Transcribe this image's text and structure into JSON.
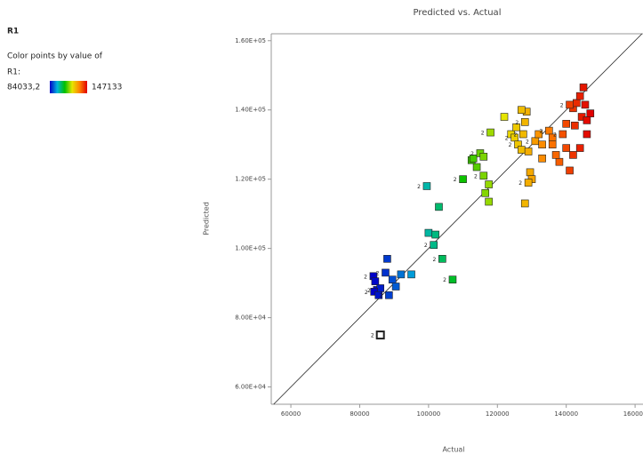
{
  "chart_data": {
    "type": "scatter",
    "title": "Predicted vs. Actual",
    "x_label": "Actual",
    "y_label": "Predicted",
    "colorbar_title": "R1",
    "colorbar_caption": "Color points by value of",
    "colorbar_variable": "R1:",
    "colorbar_range": [
      {
        "value": 84033.2,
        "label": "84033,2"
      },
      147133
    ],
    "colormap": [
      "#0000c8",
      "#00b4dc",
      "#00c000",
      "#e6e600",
      "#ff8000",
      "#e00000"
    ],
    "xlim": [
      54300,
      162300
    ],
    "ylim": [
      55000,
      162000
    ],
    "xticks": [
      60000,
      80000,
      100000,
      120000,
      140000,
      160000
    ],
    "yticks": [
      {
        "value": 60000,
        "label": "6.00E+04"
      },
      {
        "value": 80000,
        "label": "8.00E+04"
      },
      {
        "value": 100000,
        "label": "1.00E+05"
      },
      {
        "value": 120000,
        "label": "1.20E+05"
      },
      {
        "value": 140000,
        "label": "1.40E+05"
      },
      {
        "value": 160000,
        "label": "1.60E+05"
      }
    ],
    "reference_line": true,
    "highlighted_point": 13,
    "x": [
      84000,
      84500,
      85000,
      86000,
      84200,
      85500,
      87500,
      88000,
      89500,
      90500,
      92000,
      95000,
      88500,
      86000,
      100000,
      102000,
      101500,
      104000,
      107000,
      103000,
      99500,
      110000,
      114000,
      116000,
      116500,
      117500,
      117500,
      118000,
      112500,
      113000,
      115000,
      116000,
      122000,
      124000,
      125000,
      125500,
      126000,
      127000,
      127500,
      128000,
      128500,
      129000,
      129500,
      130000,
      129000,
      128000,
      131000,
      132000,
      133000,
      133000,
      127000,
      135000,
      136000,
      138000,
      137000,
      139000,
      140000,
      141000,
      142000,
      140000,
      136000,
      142000,
      143000,
      144000,
      145000,
      144500,
      146000,
      145500,
      147000,
      142500,
      144000,
      146000,
      141000
    ],
    "values": [
      92000,
      90500,
      88000,
      88500,
      87500,
      86500,
      93000,
      97000,
      91000,
      89000,
      92500,
      92500,
      86500,
      75000,
      104500,
      104000,
      101000,
      97000,
      91000,
      112000,
      118000,
      120000,
      123500,
      121000,
      116000,
      113500,
      118500,
      133500,
      125500,
      126000,
      127500,
      126500,
      138000,
      133000,
      132000,
      135000,
      130000,
      128500,
      133000,
      136500,
      139500,
      128000,
      122000,
      120000,
      119000,
      113000,
      131000,
      133000,
      130000,
      126000,
      140000,
      134000,
      132000,
      125000,
      127000,
      133000,
      129000,
      122500,
      127000,
      136000,
      130000,
      140500,
      142000,
      144000,
      146500,
      138000,
      137000,
      141500,
      139000,
      135500,
      129000,
      133000,
      141500
    ],
    "replicate_labels": [
      "2",
      null,
      "2",
      null,
      "2",
      null,
      "2",
      null,
      null,
      null,
      null,
      null,
      "2",
      "2",
      null,
      null,
      "2",
      "2",
      "2",
      null,
      "2",
      "2",
      null,
      "2",
      null,
      null,
      null,
      "2",
      null,
      null,
      "2",
      null,
      null,
      null,
      "2",
      null,
      "2",
      null,
      "2",
      "2",
      null,
      null,
      null,
      null,
      "2",
      null,
      "2",
      null,
      null,
      null,
      null,
      "2",
      null,
      null,
      null,
      "2",
      null,
      null,
      null,
      null,
      null,
      null,
      null,
      null,
      null,
      null,
      null,
      null,
      null,
      null,
      null,
      null,
      "2"
    ]
  }
}
